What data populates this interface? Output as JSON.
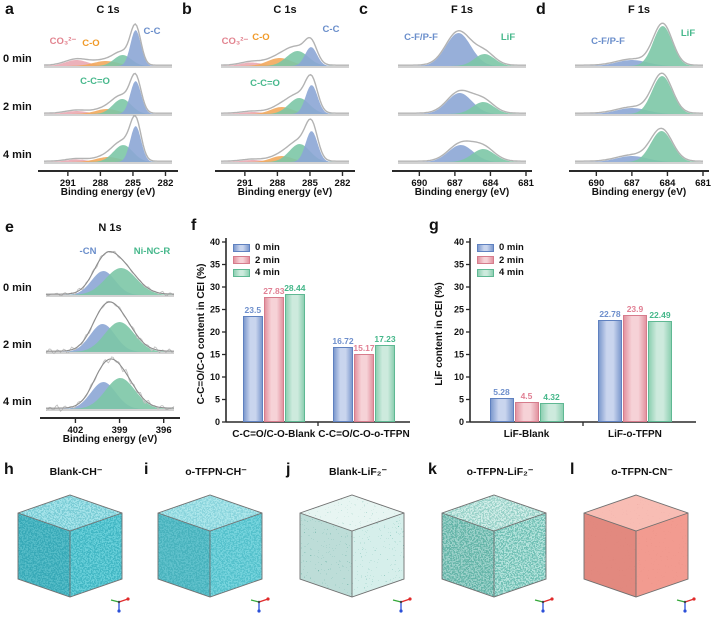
{
  "colors": {
    "fill": {
      "blue": "#8ca6d5",
      "green": "#7cc6a6",
      "orange": "#f2a85c",
      "pink": "#eaa9b2"
    },
    "text": {
      "blue": "#6a8ecb",
      "green": "#47b88c",
      "orange": "#f09a29",
      "pink": "#e2838f"
    },
    "envelope": "#b3b3b3",
    "envelope_dark": "#8d8d8d",
    "noise_trace": "#c2c2c2",
    "baseline": "#a6a6a6",
    "axis": "#2a2a2a",
    "series": [
      {
        "name": "0 min",
        "light": "#c9d5ee",
        "dark": "#7e9ace",
        "border": "#5f81c0",
        "label": "#6e8fcc"
      },
      {
        "name": "2 min",
        "light": "#f6d2d7",
        "dark": "#e394a1",
        "border": "#d67c8c",
        "label": "#e17f93"
      },
      {
        "name": "4 min",
        "light": "#cdeadd",
        "dark": "#8ed0b2",
        "border": "#5fb893",
        "label": "#45b78a"
      }
    ],
    "tripod": {
      "x_axis": "#e02a2a",
      "y_axis": "#35a83a",
      "z_axis": "#2b4fd8"
    }
  },
  "xps_panels": [
    {
      "letter": "a",
      "title": "C 1s",
      "xlabel": "Binding energy (eV)",
      "xticks": [
        291,
        288,
        285,
        282
      ],
      "xrange": [
        293.2,
        281.4
      ],
      "show_row_labels": true,
      "row_labels": [
        "0 min",
        "2 min",
        "4 min"
      ],
      "noise": [
        0,
        0,
        0
      ],
      "rows": [
        [
          {
            "c": 290.2,
            "w": 1.05,
            "h": 6,
            "color": "pink"
          },
          {
            "c": 287.5,
            "w": 1.15,
            "h": 5,
            "color": "orange"
          },
          {
            "c": 285.95,
            "w": 0.8,
            "h": 11,
            "color": "green"
          },
          {
            "c": 284.75,
            "w": 0.48,
            "h": 36,
            "color": "blue"
          }
        ],
        [
          {
            "c": 290.2,
            "w": 1.0,
            "h": 3,
            "color": "pink"
          },
          {
            "c": 287.4,
            "w": 1.05,
            "h": 5,
            "color": "orange"
          },
          {
            "c": 286.0,
            "w": 0.85,
            "h": 15,
            "color": "green"
          },
          {
            "c": 284.75,
            "w": 0.5,
            "h": 33,
            "color": "blue"
          }
        ],
        [
          {
            "c": 290.2,
            "w": 1.0,
            "h": 2.5,
            "color": "pink"
          },
          {
            "c": 287.3,
            "w": 1.1,
            "h": 5,
            "color": "orange"
          },
          {
            "c": 285.9,
            "w": 0.9,
            "h": 17,
            "color": "green"
          },
          {
            "c": 284.75,
            "w": 0.5,
            "h": 36,
            "color": "blue"
          }
        ]
      ],
      "labels": [
        {
          "row": 0,
          "text": "CO₃²⁻",
          "color": "pink",
          "fx": 0.15,
          "y": 22
        },
        {
          "row": 0,
          "text": "C-O",
          "color": "orange",
          "fx": 0.37,
          "y": 24
        },
        {
          "row": 0,
          "text": "C-C",
          "color": "blue",
          "fx": 0.84,
          "y": 12
        },
        {
          "row": 1,
          "text": "C-C=O",
          "color": "green",
          "fx": 0.4,
          "y": 14
        }
      ]
    },
    {
      "letter": "b",
      "title": "C 1s",
      "xlabel": "Binding energy (eV)",
      "xticks": [
        291,
        288,
        285,
        282
      ],
      "xrange": [
        293.2,
        281.4
      ],
      "show_row_labels": false,
      "row_labels": [],
      "noise": [
        0,
        0,
        0
      ],
      "rows": [
        [
          {
            "c": 290.4,
            "w": 1.0,
            "h": 3.5,
            "color": "pink"
          },
          {
            "c": 287.8,
            "w": 1.1,
            "h": 8,
            "color": "orange"
          },
          {
            "c": 286.15,
            "w": 1.0,
            "h": 15,
            "color": "green"
          },
          {
            "c": 284.9,
            "w": 0.55,
            "h": 19,
            "color": "blue"
          }
        ],
        [
          {
            "c": 290.3,
            "w": 1.0,
            "h": 2,
            "color": "pink"
          },
          {
            "c": 287.6,
            "w": 1.0,
            "h": 7,
            "color": "orange"
          },
          {
            "c": 286.0,
            "w": 0.95,
            "h": 16,
            "color": "green"
          },
          {
            "c": 284.85,
            "w": 0.55,
            "h": 29,
            "color": "blue"
          }
        ],
        [
          {
            "c": 290.3,
            "w": 1.0,
            "h": 2,
            "color": "pink"
          },
          {
            "c": 287.6,
            "w": 1.0,
            "h": 6,
            "color": "orange"
          },
          {
            "c": 285.95,
            "w": 0.95,
            "h": 18,
            "color": "green"
          },
          {
            "c": 284.85,
            "w": 0.55,
            "h": 31,
            "color": "blue"
          }
        ]
      ],
      "labels": [
        {
          "row": 0,
          "text": "CO₃²⁻",
          "color": "pink",
          "fx": 0.11,
          "y": 22
        },
        {
          "row": 0,
          "text": "C-O",
          "color": "orange",
          "fx": 0.31,
          "y": 18
        },
        {
          "row": 0,
          "text": "C-C",
          "color": "blue",
          "fx": 0.86,
          "y": 10
        },
        {
          "row": 1,
          "text": "C-C=O",
          "color": "green",
          "fx": 0.34,
          "y": 16
        }
      ]
    },
    {
      "letter": "c",
      "title": "F 1s",
      "xlabel": "Binding energy (eV)",
      "xticks": [
        690,
        687,
        684,
        681
      ],
      "xrange": [
        691.8,
        681.0
      ],
      "show_row_labels": false,
      "row_labels": [],
      "noise": [
        0,
        0,
        0
      ],
      "rows": [
        [
          {
            "c": 686.7,
            "w": 1.05,
            "h": 33,
            "color": "blue"
          },
          {
            "c": 684.5,
            "w": 0.85,
            "h": 12,
            "color": "green"
          }
        ],
        [
          {
            "c": 686.6,
            "w": 1.05,
            "h": 21,
            "color": "blue"
          },
          {
            "c": 684.6,
            "w": 0.9,
            "h": 12,
            "color": "green"
          }
        ],
        [
          {
            "c": 686.5,
            "w": 1.05,
            "h": 17,
            "color": "blue"
          },
          {
            "c": 684.6,
            "w": 0.95,
            "h": 13,
            "color": "green"
          }
        ]
      ],
      "labels": [
        {
          "row": 0,
          "text": "C-F/P-F",
          "color": "blue",
          "fx": 0.18,
          "y": 18
        },
        {
          "row": 0,
          "text": "LiF",
          "color": "green",
          "fx": 0.86,
          "y": 18
        }
      ]
    },
    {
      "letter": "d",
      "title": "F 1s",
      "xlabel": "Binding energy (eV)",
      "xticks": [
        690,
        687,
        684,
        681
      ],
      "xrange": [
        691.8,
        681.0
      ],
      "show_row_labels": false,
      "row_labels": [],
      "noise": [
        0,
        0,
        0
      ],
      "rows": [
        [
          {
            "c": 687.0,
            "w": 1.3,
            "h": 6,
            "color": "blue"
          },
          {
            "c": 684.4,
            "w": 0.8,
            "h": 40,
            "color": "green"
          }
        ],
        [
          {
            "c": 687.0,
            "w": 1.3,
            "h": 6,
            "color": "blue"
          },
          {
            "c": 684.45,
            "w": 0.85,
            "h": 38,
            "color": "green"
          }
        ],
        [
          {
            "c": 687.0,
            "w": 1.3,
            "h": 6,
            "color": "blue"
          },
          {
            "c": 684.5,
            "w": 0.9,
            "h": 31,
            "color": "green"
          }
        ]
      ],
      "labels": [
        {
          "row": 0,
          "text": "C-F/P-F",
          "color": "blue",
          "fx": 0.26,
          "y": 22
        },
        {
          "row": 0,
          "text": "LiF",
          "color": "green",
          "fx": 0.88,
          "y": 14
        }
      ]
    },
    {
      "letter": "e",
      "title": "N 1s",
      "xlabel": "Binding energy (eV)",
      "xticks": [
        402,
        399,
        396
      ],
      "xrange": [
        404.0,
        395.3
      ],
      "show_row_labels": true,
      "row_labels": [
        "0 min",
        "2 min",
        "4 min"
      ],
      "noise": [
        2.2,
        2.6,
        3.6
      ],
      "rows": [
        [
          {
            "c": 400.1,
            "w": 0.8,
            "h": 24,
            "color": "blue"
          },
          {
            "c": 398.9,
            "w": 1.05,
            "h": 27,
            "color": "green"
          }
        ],
        [
          {
            "c": 400.15,
            "w": 0.85,
            "h": 28,
            "color": "blue"
          },
          {
            "c": 399.0,
            "w": 1.0,
            "h": 30,
            "color": "green"
          }
        ],
        [
          {
            "c": 400.1,
            "w": 0.85,
            "h": 27,
            "color": "blue"
          },
          {
            "c": 398.95,
            "w": 1.0,
            "h": 31,
            "color": "green"
          }
        ]
      ],
      "labels": [
        {
          "row": 0,
          "text": "-CN",
          "color": "blue",
          "fx": 0.33,
          "y": 12
        },
        {
          "row": 0,
          "text": "Ni-NC-R",
          "color": "green",
          "fx": 0.83,
          "y": 12
        }
      ]
    }
  ],
  "chart_data": [
    {
      "type": "bar",
      "letter": "f",
      "ylabel": "C-C=O/C-O content in CEI  (%)",
      "ylim": [
        0,
        40
      ],
      "yticks": [
        0,
        5,
        10,
        15,
        20,
        25,
        30,
        35,
        40
      ],
      "legend": [
        "0 min",
        "2 min",
        "4 min"
      ],
      "legend_position": "top-left",
      "grid": false,
      "categories": [
        "C-C=O/C-O-Blank",
        "C-C=O/C-O-o-TFPN"
      ],
      "series": [
        {
          "name": "0 min",
          "values": [
            23.5,
            16.72
          ],
          "value_labels": [
            "23.5",
            "16.72"
          ]
        },
        {
          "name": "2 min",
          "values": [
            27.83,
            15.17
          ],
          "value_labels": [
            "27.83",
            "15.17"
          ]
        },
        {
          "name": "4 min",
          "values": [
            28.44,
            17.23
          ],
          "value_labels": [
            "28.44",
            "17.23"
          ]
        }
      ]
    },
    {
      "type": "bar",
      "letter": "g",
      "ylabel": "LiF content in CEI  (%)",
      "ylim": [
        0,
        40
      ],
      "yticks": [
        0,
        5,
        10,
        15,
        20,
        25,
        30,
        35,
        40
      ],
      "legend": [
        "0 min",
        "2 min",
        "4 min"
      ],
      "legend_position": "top-left",
      "grid": false,
      "categories": [
        "LiF-Blank",
        "LiF-o-TFPN"
      ],
      "series": [
        {
          "name": "0 min",
          "values": [
            5.28,
            22.78
          ],
          "value_labels": [
            "5.28",
            "22.78"
          ]
        },
        {
          "name": "2 min",
          "values": [
            4.5,
            23.9
          ],
          "value_labels": [
            "4.5",
            "23.9"
          ]
        },
        {
          "name": "4 min",
          "values": [
            4.32,
            22.49
          ],
          "value_labels": [
            "4.32",
            "22.49"
          ]
        }
      ]
    }
  ],
  "cubes": [
    {
      "letter": "h",
      "title": "Blank-CH⁻",
      "top": "#8edde4",
      "left": "#5ac7d2",
      "right": "#68cfd9",
      "speckle": "#1d9fb0",
      "density": "0 0 1 1",
      "opacity": 0.5,
      "seed": 3
    },
    {
      "letter": "i",
      "title": "o-TFPN-CH⁻",
      "top": "#97e0e6",
      "left": "#66ccd6",
      "right": "#76d4dd",
      "speckle": "#28a5b4",
      "density": "0 0 1 1",
      "opacity": 0.4,
      "seed": 7
    },
    {
      "letter": "j",
      "title": "Blank-LiF₂⁻",
      "top": "#e0f3ef",
      "left": "#c8e9e4",
      "right": "#d6efeb",
      "speckle": "#4aa796",
      "density": "0 0 0 1",
      "opacity": 0.55,
      "seed": 11
    },
    {
      "letter": "k",
      "title": "o-TFPN-LiF₂⁻",
      "top": "#c4e9e2",
      "left": "#a6ded5",
      "right": "#b4e3dc",
      "speckle": "#2f9e8e",
      "density": "0 0 1 1",
      "opacity": 0.5,
      "seed": 5
    },
    {
      "letter": "l",
      "title": "o-TFPN-CN⁻",
      "top": "#f7ab9f",
      "left": "#ef9186",
      "right": "#f29b90",
      "speckle": "#dd8175",
      "density": "0 0 0 1",
      "opacity": 0.3,
      "seed": 9
    }
  ]
}
